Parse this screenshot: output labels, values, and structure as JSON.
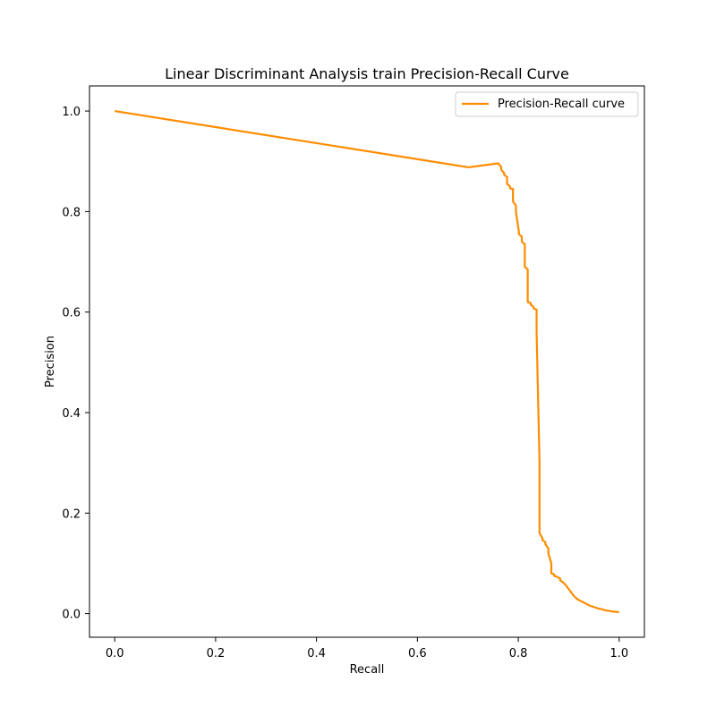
{
  "chart_data": {
    "type": "line",
    "title": "Linear Discriminant Analysis train Precision-Recall Curve",
    "xlabel": "Recall",
    "ylabel": "Precision",
    "xlim": [
      -0.05,
      1.05
    ],
    "ylim": [
      -0.047,
      1.05
    ],
    "xticks": [
      0.0,
      0.2,
      0.4,
      0.6,
      0.8,
      1.0
    ],
    "xtick_labels": [
      "0.0",
      "0.2",
      "0.4",
      "0.6",
      "0.8",
      "1.0"
    ],
    "yticks": [
      0.0,
      0.2,
      0.4,
      0.6,
      0.8,
      1.0
    ],
    "ytick_labels": [
      "0.0",
      "0.2",
      "0.4",
      "0.6",
      "0.8",
      "1.0"
    ],
    "grid": false,
    "legend_position": "top-right",
    "series": [
      {
        "name": "Precision-Recall curve",
        "color": "#ff8c00",
        "x": [
          0.0,
          0.7017,
          0.7602,
          0.7661,
          0.7661,
          0.7719,
          0.7719,
          0.7778,
          0.7778,
          0.7836,
          0.7836,
          0.7895,
          0.7895,
          0.7953,
          0.7953,
          0.8012,
          0.8012,
          0.807,
          0.807,
          0.8129,
          0.8129,
          0.8187,
          0.8187,
          0.8246,
          0.8246,
          0.8304,
          0.8304,
          0.8363,
          0.8363,
          0.8421,
          0.8421,
          0.848,
          0.848,
          0.8538,
          0.8538,
          0.8596,
          0.8596,
          0.8655,
          0.8655,
          0.8713,
          0.8713,
          0.8772,
          0.883,
          0.883,
          0.8889,
          0.8947,
          0.9006,
          0.9064,
          0.9123,
          0.9181,
          0.924,
          0.9298,
          0.9357,
          0.9415,
          0.9474,
          0.9532,
          0.9591,
          0.9649,
          0.9708,
          0.9766,
          0.9825,
          0.9883,
          0.9942,
          1.0
        ],
        "y": [
          1.0,
          0.888,
          0.896,
          0.889,
          0.883,
          0.877,
          0.873,
          0.869,
          0.855,
          0.85,
          0.846,
          0.845,
          0.82,
          0.812,
          0.8,
          0.76,
          0.755,
          0.75,
          0.74,
          0.735,
          0.69,
          0.685,
          0.62,
          0.618,
          0.615,
          0.61,
          0.607,
          0.605,
          0.56,
          0.3,
          0.16,
          0.15,
          0.146,
          0.142,
          0.138,
          0.13,
          0.12,
          0.1,
          0.08,
          0.078,
          0.075,
          0.073,
          0.07,
          0.066,
          0.062,
          0.056,
          0.048,
          0.04,
          0.033,
          0.028,
          0.025,
          0.022,
          0.019,
          0.016,
          0.014,
          0.012,
          0.01,
          0.009,
          0.007,
          0.006,
          0.005,
          0.004,
          0.0035,
          0.003
        ]
      }
    ]
  }
}
